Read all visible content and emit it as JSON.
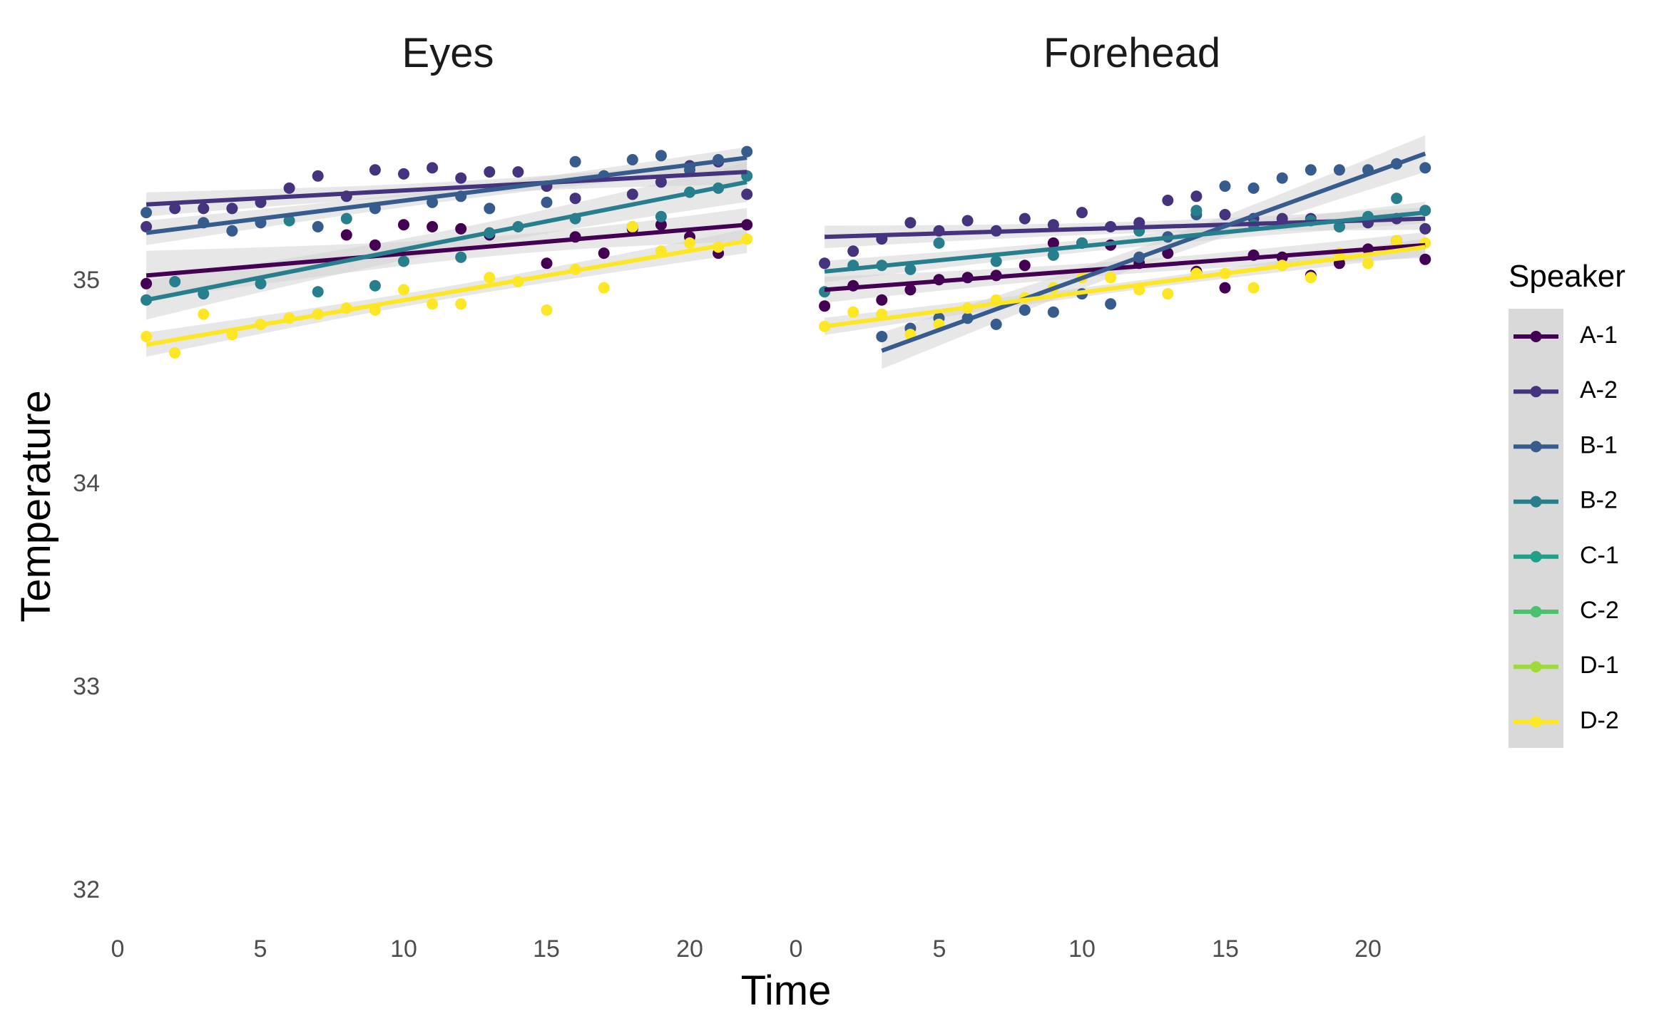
{
  "chart_data": {
    "type": "scatter",
    "panels": [
      "Eyes",
      "Forehead"
    ],
    "xlabel": "Time",
    "ylabel": "Temperature",
    "x_ticks": [
      "0",
      "5",
      "10",
      "15",
      "20"
    ],
    "y_ticks": [
      "32",
      "33",
      "34",
      "35"
    ],
    "xlim": [
      0,
      22
    ],
    "ylim": [
      31.8,
      35.8
    ],
    "grid": false,
    "fit": "linear regression lines with grey confidence bands",
    "legend": {
      "title": "Speaker",
      "position": "right",
      "entries": [
        "A-1",
        "A-2",
        "B-1",
        "B-2",
        "C-1",
        "C-2",
        "D-1",
        "D-2"
      ]
    },
    "colors": {
      "A-1": "#440154",
      "A-2": "#46337E",
      "B-1": "#365C8D",
      "B-2": "#277F8E",
      "C-1": "#1FA187",
      "C-2": "#4AC16D",
      "D-1": "#9FDA3A",
      "D-2": "#FDE725",
      "band": "#d3d3d3",
      "legend_key_bg": "#d9d9d9"
    },
    "series": [
      {
        "name": "A-1",
        "panel": "Eyes",
        "x": [
          1,
          8,
          9,
          10,
          11,
          12,
          13,
          15,
          16,
          17,
          18,
          19,
          20,
          21,
          22
        ],
        "y": [
          34.99,
          35.23,
          35.18,
          35.28,
          35.27,
          35.26,
          35.23,
          35.09,
          35.22,
          35.14,
          35.26,
          35.28,
          35.22,
          35.14,
          35.28
        ],
        "fit": [
          35.03,
          35.28
        ]
      },
      {
        "name": "A-2",
        "panel": "Eyes",
        "x": [
          1,
          2,
          3,
          4,
          5,
          6,
          7,
          8,
          9,
          10,
          11,
          12,
          13,
          14,
          15,
          16,
          17,
          18,
          19,
          20,
          21,
          22
        ],
        "y": [
          35.27,
          35.36,
          35.36,
          35.36,
          35.39,
          35.46,
          35.52,
          35.42,
          35.55,
          35.53,
          35.56,
          35.51,
          35.54,
          35.54,
          35.47,
          35.41,
          35.52,
          35.43,
          35.49,
          35.57,
          35.59,
          35.43
        ],
        "fit": [
          35.38,
          35.54
        ]
      },
      {
        "name": "B-1",
        "panel": "Eyes",
        "x": [
          1,
          3,
          4,
          5,
          7,
          9,
          11,
          12,
          13,
          15,
          16,
          17,
          18,
          19,
          20,
          21,
          22
        ],
        "y": [
          35.34,
          35.29,
          35.25,
          35.29,
          35.27,
          35.36,
          35.39,
          35.42,
          35.36,
          35.39,
          35.59,
          35.52,
          35.6,
          35.62,
          35.55,
          35.6,
          35.64
        ],
        "fit": [
          35.24,
          35.61
        ]
      },
      {
        "name": "B-2",
        "panel": "Eyes",
        "x": [
          1,
          2,
          3,
          5,
          6,
          7,
          8,
          9,
          10,
          12,
          13,
          14,
          16,
          18,
          19,
          20,
          21,
          22
        ],
        "y": [
          34.91,
          35.0,
          34.94,
          34.99,
          35.3,
          34.95,
          35.31,
          34.98,
          35.1,
          35.12,
          35.24,
          35.27,
          35.31,
          35.27,
          35.32,
          35.44,
          35.46,
          35.52
        ],
        "fit": [
          34.91,
          35.49
        ]
      },
      {
        "name": "D-2",
        "panel": "Eyes",
        "x": [
          1,
          2,
          3,
          4,
          5,
          6,
          7,
          8,
          9,
          10,
          11,
          12,
          13,
          14,
          15,
          16,
          17,
          18,
          19,
          20,
          21,
          22
        ],
        "y": [
          34.73,
          34.65,
          34.84,
          34.74,
          34.79,
          34.82,
          34.84,
          34.87,
          34.86,
          34.96,
          34.89,
          34.89,
          35.02,
          35.0,
          34.86,
          35.06,
          34.97,
          35.27,
          35.15,
          35.19,
          35.17,
          35.21
        ],
        "fit": [
          34.69,
          35.2
        ]
      },
      {
        "name": "A-1",
        "panel": "Forehead",
        "x": [
          1,
          2,
          3,
          4,
          5,
          6,
          7,
          8,
          9,
          10,
          11,
          12,
          13,
          14,
          15,
          16,
          17,
          18,
          19,
          20,
          21,
          22
        ],
        "y": [
          34.88,
          34.98,
          34.91,
          34.96,
          35.01,
          35.02,
          35.03,
          35.08,
          35.19,
          35.19,
          35.18,
          35.09,
          35.14,
          35.05,
          34.97,
          35.13,
          35.12,
          35.03,
          35.09,
          35.16,
          35.2,
          35.11
        ],
        "fit": [
          34.96,
          35.18
        ]
      },
      {
        "name": "A-2",
        "panel": "Forehead",
        "x": [
          1,
          2,
          3,
          4,
          5,
          6,
          7,
          8,
          9,
          10,
          11,
          12,
          13,
          14,
          15,
          16,
          17,
          18,
          19,
          20,
          21,
          22
        ],
        "y": [
          35.09,
          35.15,
          35.21,
          35.29,
          35.25,
          35.3,
          35.25,
          35.31,
          35.28,
          35.34,
          35.27,
          35.29,
          35.4,
          35.42,
          35.33,
          35.31,
          35.31,
          35.31,
          35.27,
          35.29,
          35.31,
          35.26
        ],
        "fit": [
          35.22,
          35.31
        ]
      },
      {
        "name": "B-1",
        "panel": "Forehead",
        "x": [
          3,
          4,
          5,
          6,
          7,
          8,
          9,
          10,
          11,
          12,
          13,
          14,
          15,
          16,
          17,
          18,
          19,
          20,
          21,
          22
        ],
        "y": [
          34.73,
          34.77,
          34.82,
          34.82,
          34.79,
          34.86,
          34.85,
          34.94,
          34.89,
          35.12,
          35.22,
          35.33,
          35.47,
          35.46,
          35.51,
          35.55,
          35.55,
          35.55,
          35.58,
          35.56
        ],
        "fit": [
          34.66,
          35.63
        ]
      },
      {
        "name": "B-2",
        "panel": "Forehead",
        "x": [
          1,
          2,
          3,
          4,
          5,
          7,
          9,
          10,
          12,
          14,
          16,
          18,
          19,
          20,
          21,
          22
        ],
        "y": [
          34.95,
          35.08,
          35.08,
          35.06,
          35.19,
          35.1,
          35.13,
          35.19,
          35.25,
          35.35,
          35.28,
          35.3,
          35.27,
          35.32,
          35.41,
          35.35
        ],
        "fit": [
          35.05,
          35.34
        ]
      },
      {
        "name": "D-2",
        "panel": "Forehead",
        "x": [
          1,
          2,
          3,
          4,
          5,
          6,
          7,
          8,
          9,
          10,
          11,
          12,
          13,
          14,
          15,
          16,
          17,
          18,
          19,
          20,
          21,
          22
        ],
        "y": [
          34.78,
          34.85,
          34.84,
          34.74,
          34.79,
          34.87,
          34.91,
          34.92,
          34.97,
          35.02,
          35.02,
          34.96,
          34.94,
          35.04,
          35.04,
          34.97,
          35.08,
          35.02,
          35.14,
          35.09,
          35.2,
          35.19
        ],
        "fit": [
          34.78,
          35.17
        ]
      }
    ]
  }
}
